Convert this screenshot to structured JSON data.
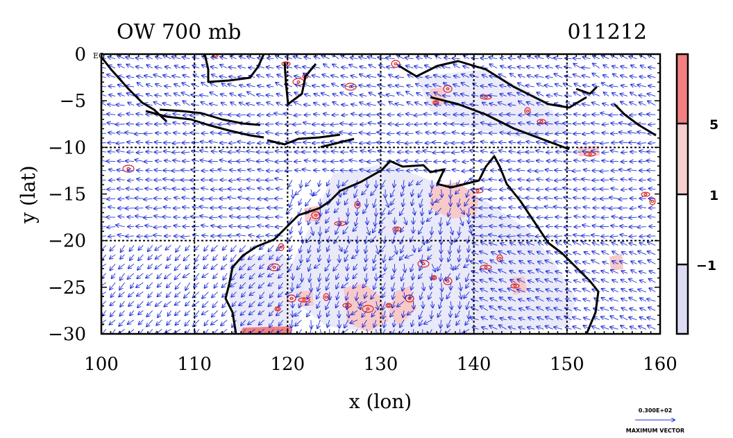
{
  "title": {
    "left": "OW 700 mb",
    "right": "011212"
  },
  "axes": {
    "xlabel": "x (lon)",
    "ylabel": "y (lat)",
    "xlim": [
      100,
      160
    ],
    "ylim": [
      -30,
      0
    ],
    "x_ticks": [
      "100",
      "110",
      "120",
      "130",
      "140",
      "150",
      "160"
    ],
    "y_ticks": [
      "0",
      "−5",
      "−10",
      "−15",
      "−20",
      "−25",
      "−30"
    ],
    "y_top_suffix": "EQ",
    "grid_lon": [
      110,
      120,
      130,
      140,
      150
    ],
    "grid_lat": [
      -10,
      -20
    ]
  },
  "colorbar": {
    "levels": [
      "5",
      "1",
      "−1"
    ],
    "colors": [
      "#f28080",
      "#f8cfcf",
      "#ffffff",
      "#dcdcf5"
    ]
  },
  "legend": {
    "value": "0.300E+02",
    "label": "MAXIMUM VECTOR"
  },
  "colors": {
    "coast": "#000000",
    "vector": "#1f2fd6",
    "contour_pos": "#d61f1f",
    "fill_pos": "#f8c9c9",
    "fill_neg": "#dcdcf5"
  }
}
